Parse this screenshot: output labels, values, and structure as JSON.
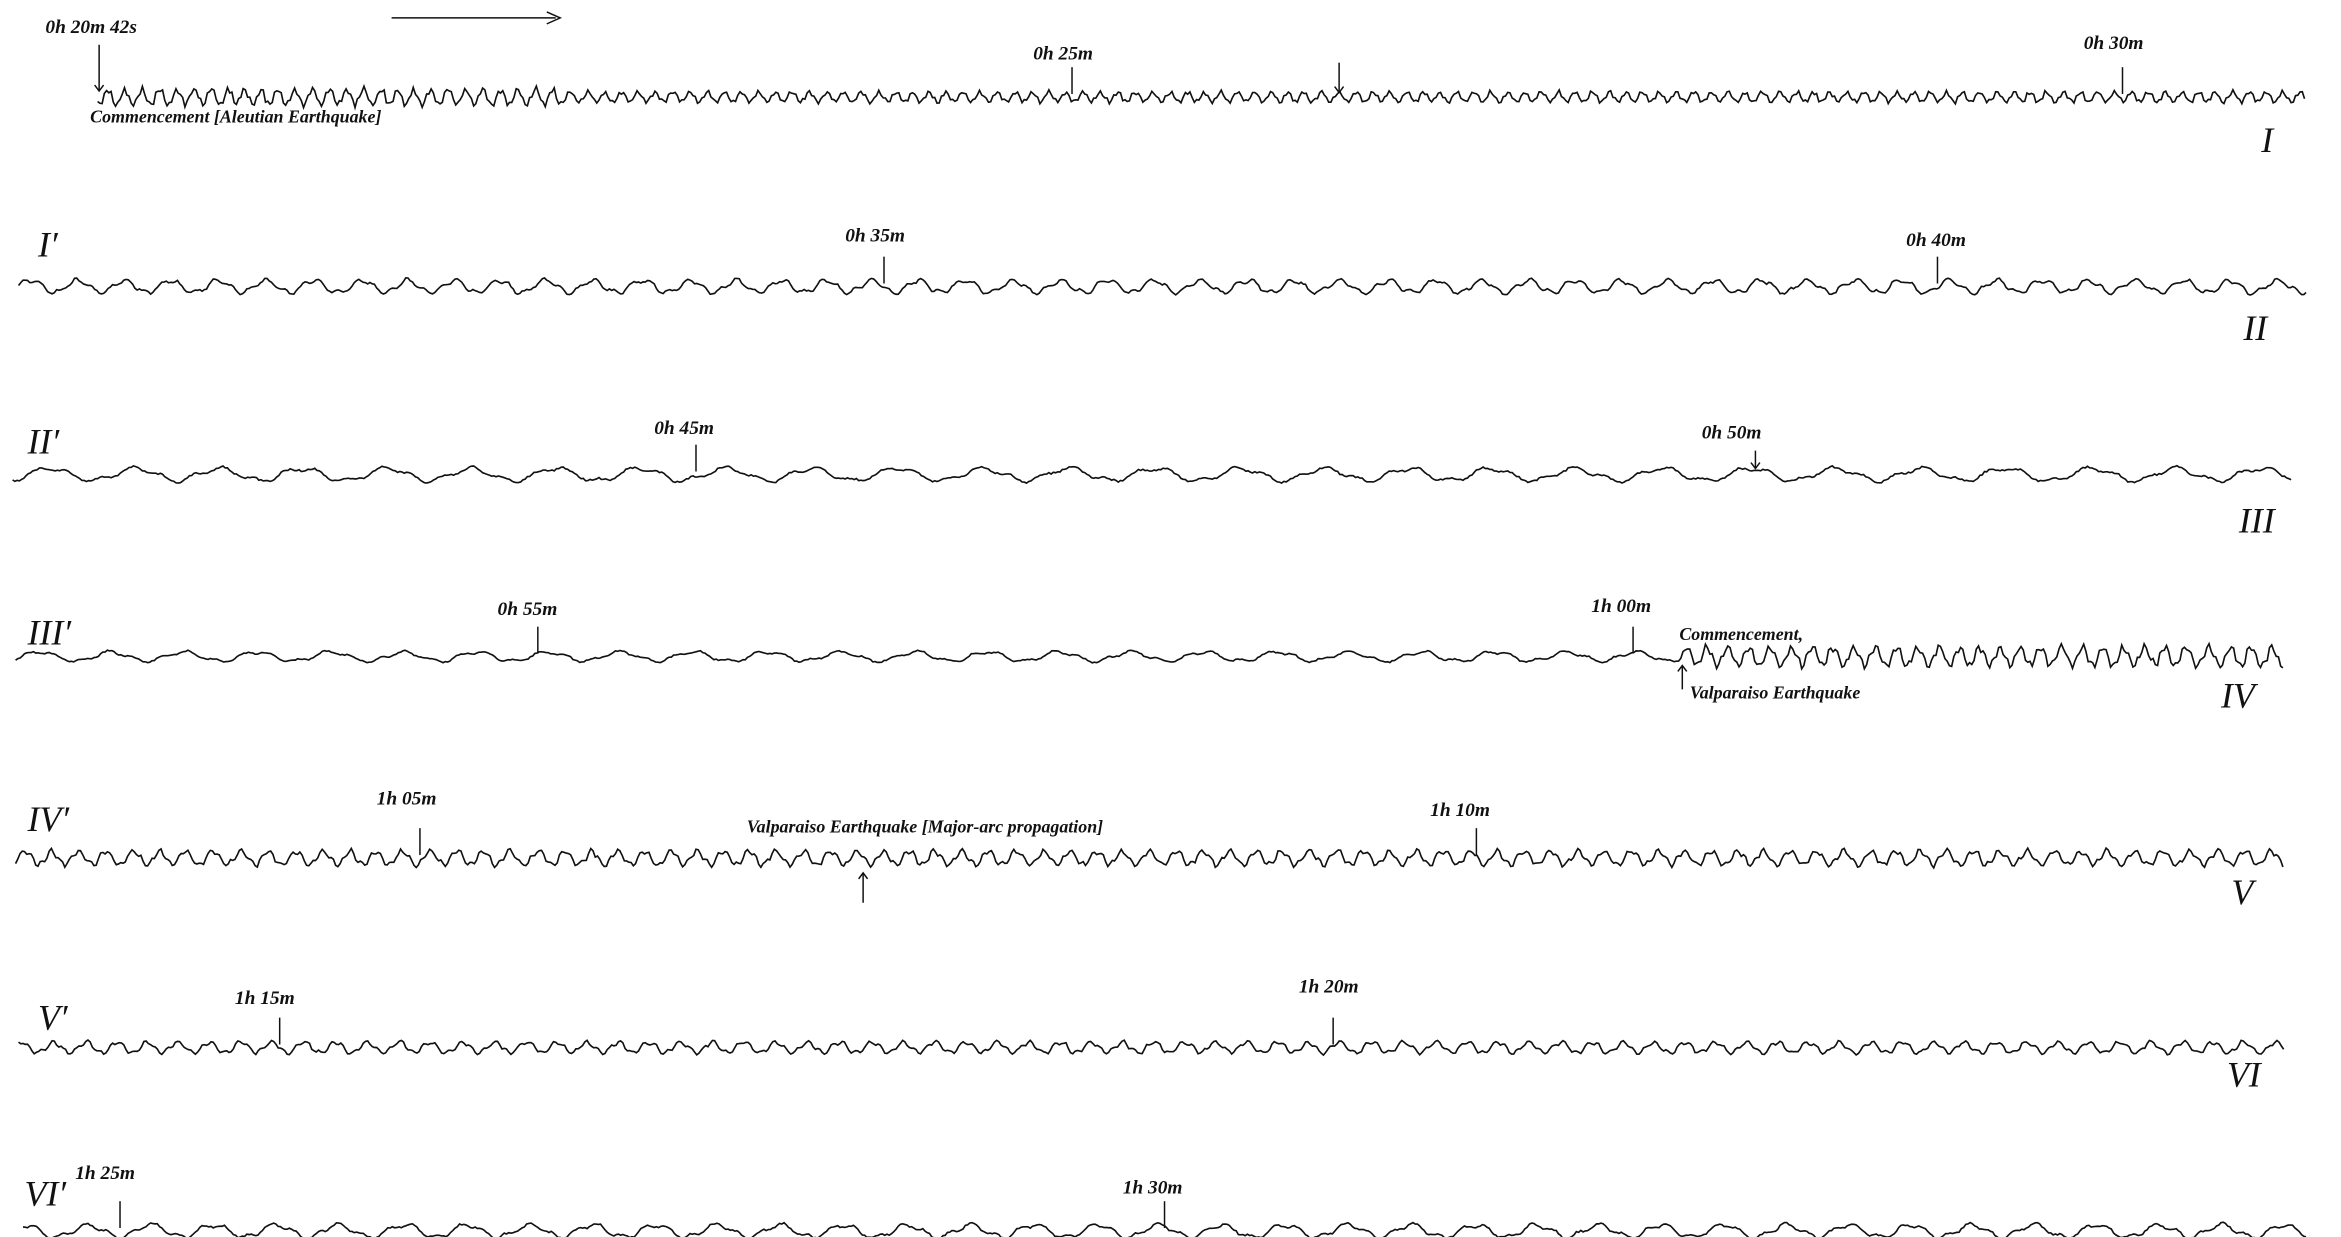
{
  "rows": [
    {
      "marks": [
        {
          "label": "0h 20m 42s"
        },
        {
          "label": "0h 25m"
        },
        {
          "label": "0h 30m"
        }
      ],
      "end_label": "I"
    },
    {
      "start_label": "I′",
      "marks": [
        {
          "label": "0h 35m"
        },
        {
          "label": "0h 40m"
        }
      ],
      "end_label": "II"
    },
    {
      "start_label": "II′",
      "marks": [
        {
          "label": "0h 45m"
        },
        {
          "label": "0h 50m"
        }
      ],
      "end_label": "III"
    },
    {
      "start_label": "III′",
      "marks": [
        {
          "label": "0h 55m"
        },
        {
          "label": "1h 00m"
        }
      ],
      "end_label": "IV"
    },
    {
      "start_label": "IV′",
      "marks": [
        {
          "label": "1h 05m"
        },
        {
          "label": "1h 10m"
        }
      ],
      "end_label": "V"
    },
    {
      "start_label": "V′",
      "marks": [
        {
          "label": "1h 15m"
        },
        {
          "label": "1h 20m"
        }
      ],
      "end_label": "VI"
    },
    {
      "start_label": "VI′",
      "marks": [
        {
          "label": "1h 25m"
        },
        {
          "label": "1h 30m"
        }
      ]
    }
  ],
  "annotations": [
    "Commencement [Aleutian Earthquake]",
    "Commencement,",
    "Valparaiso Earthquake",
    "Valparaiso Earthquake [Major-arc propagation]"
  ]
}
